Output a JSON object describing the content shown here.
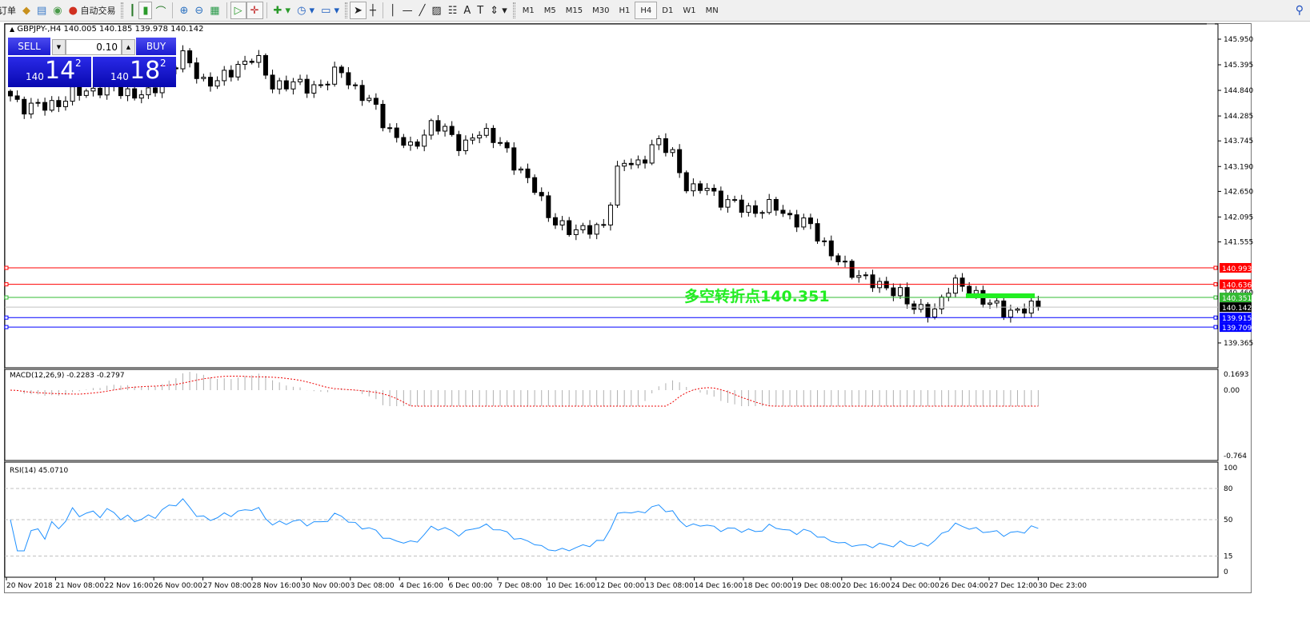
{
  "toolbar": {
    "order_label": "订单",
    "auto_trading_label": "自动交易",
    "timeframes": [
      "M1",
      "M5",
      "M15",
      "M30",
      "H1",
      "H4",
      "D1",
      "W1",
      "MN"
    ],
    "active_timeframe": "H4"
  },
  "chart": {
    "header": "GBPJPY-,H4  140.005 140.185 139.978 140.142",
    "trade_panel": {
      "sell_label": "SELL",
      "buy_label": "BUY",
      "lot": "0.10",
      "sell_prefix": "140",
      "sell_big": "14",
      "sell_sup": "2",
      "buy_prefix": "140",
      "buy_big": "18",
      "buy_sup": "2"
    },
    "price_ticks": [
      "145.950",
      "145.395",
      "144.840",
      "144.285",
      "143.745",
      "143.190",
      "142.650",
      "142.095",
      "141.555",
      "139.365"
    ],
    "hidden_tick": "140.460",
    "levels": [
      {
        "price": "140.993",
        "color": "#ff0000"
      },
      {
        "price": "140.636",
        "color": "#ff0000"
      },
      {
        "price": "140.351",
        "color": "#33bb33"
      },
      {
        "price": "140.142",
        "color": "#000000",
        "line": "#c0c0c0"
      },
      {
        "price": "139.915",
        "color": "#0000ff"
      },
      {
        "price": "139.709",
        "color": "#0000ff"
      }
    ],
    "annotation": "多空转折点140.351",
    "annotation_color": "#22ee22",
    "close_path": [
      144.72,
      144.45,
      144.5,
      144.63,
      144.8,
      144.9,
      144.85,
      144.8,
      144.7,
      145.3,
      145.55,
      145.07,
      145.0,
      145.4,
      145.55,
      145.0,
      144.95,
      144.95,
      144.95,
      145.3,
      144.75,
      144.45,
      143.85,
      143.55,
      144.1,
      143.95,
      143.65,
      143.9,
      143.85,
      143.1,
      142.9,
      141.95,
      141.9,
      141.75,
      141.9,
      143.25,
      143.25,
      143.7,
      143.5,
      142.6,
      142.75,
      142.4,
      142.3,
      142.25,
      142.3,
      142.05,
      141.85,
      141.4,
      140.9,
      140.85,
      140.5,
      140.55,
      140.0,
      140.1,
      140.6,
      140.6,
      140.2,
      140.1,
      140.05,
      140.142
    ]
  },
  "macd": {
    "label": "MACD(12,26,9) -0.2283 -0.2797",
    "ticks": [
      "0.1693",
      "0.00",
      "-0.764"
    ]
  },
  "rsi": {
    "label": "RSI(14) 45.0710",
    "ticks": [
      "100",
      "80",
      "50",
      "15",
      "0"
    ],
    "color": "#1e90ff"
  },
  "time_axis": [
    "20 Nov 2018",
    "21 Nov 08:00",
    "22 Nov 16:00",
    "26 Nov 00:00",
    "27 Nov 08:00",
    "28 Nov 16:00",
    "30 Nov 00:00",
    "3 Dec 08:00",
    "4 Dec 16:00",
    "6 Dec 00:00",
    "7 Dec 08:00",
    "10 Dec 16:00",
    "12 Dec 00:00",
    "13 Dec 08:00",
    "14 Dec 16:00",
    "18 Dec 00:00",
    "19 Dec 08:00",
    "20 Dec 16:00",
    "24 Dec 00:00",
    "26 Dec 04:00",
    "27 Dec 12:00",
    "30 Dec 23:00"
  ]
}
